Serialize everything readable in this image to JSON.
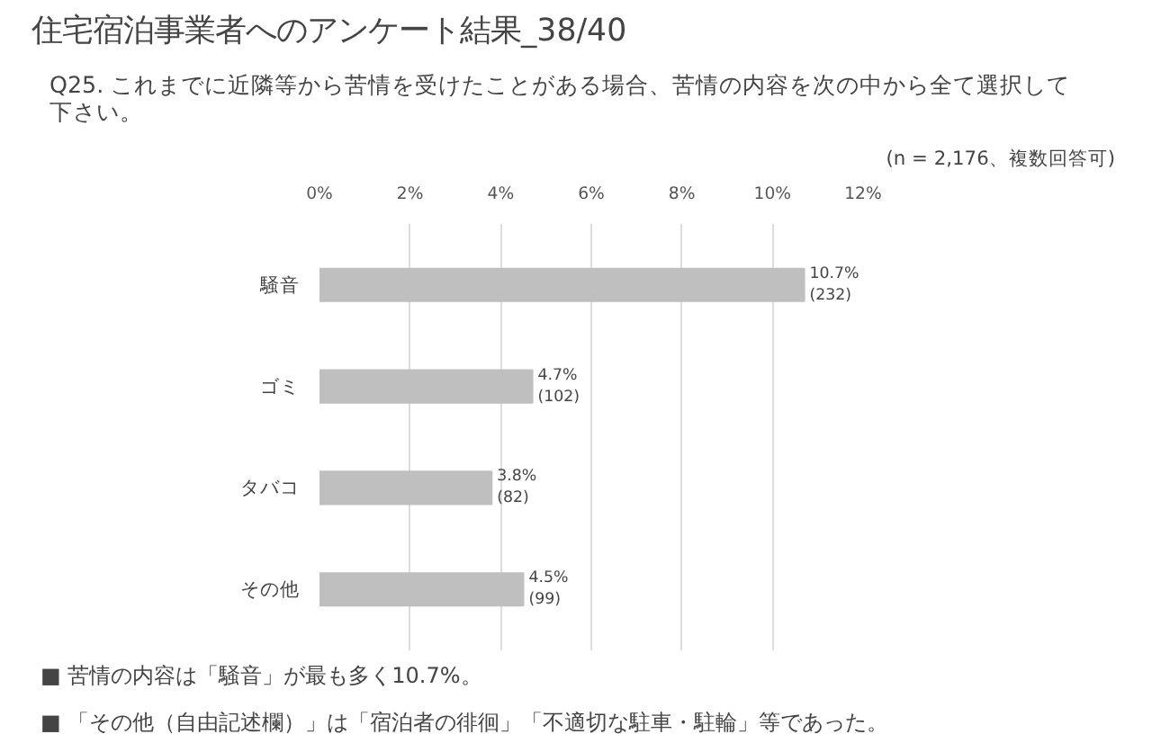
{
  "chart_data": {
    "type": "bar",
    "orientation": "horizontal",
    "title": "住宅宿泊事業者へのアンケート結果_38/40",
    "subtitle": "Q25. これまでに近隣等から苦情を受けたことがある場合、苦情の内容を次の中から全て選択して下さい。",
    "categories": [
      "騒音",
      "ゴミ",
      "タバコ",
      "その他"
    ],
    "values": [
      10.7,
      4.7,
      3.8,
      4.5
    ],
    "value_labels": [
      "10.7%\n(232)",
      "4.7%\n(102)",
      "3.8%\n(82)",
      "4.5%\n(99)"
    ],
    "color": "#bfbfbf",
    "xlim": [
      0,
      12
    ],
    "xticks": [
      {
        "value": 0,
        "label": "0%"
      },
      {
        "value": 2,
        "label": "2%"
      },
      {
        "value": 4,
        "label": "4%"
      },
      {
        "value": 6,
        "label": "6%"
      },
      {
        "value": 8,
        "label": "8%"
      },
      {
        "value": 10,
        "label": "10%"
      },
      {
        "value": 12,
        "label": "12%"
      }
    ],
    "grid": "x",
    "annotations": [
      "(n = 2,176、複数回答可)",
      "■ 苦情の内容は「騒音」が最も多く10.7%。",
      "■ 「その他（自由記述欄）」は「宿泊者の徘徊」「不適切な駐車・駐輪」等であった。"
    ]
  }
}
